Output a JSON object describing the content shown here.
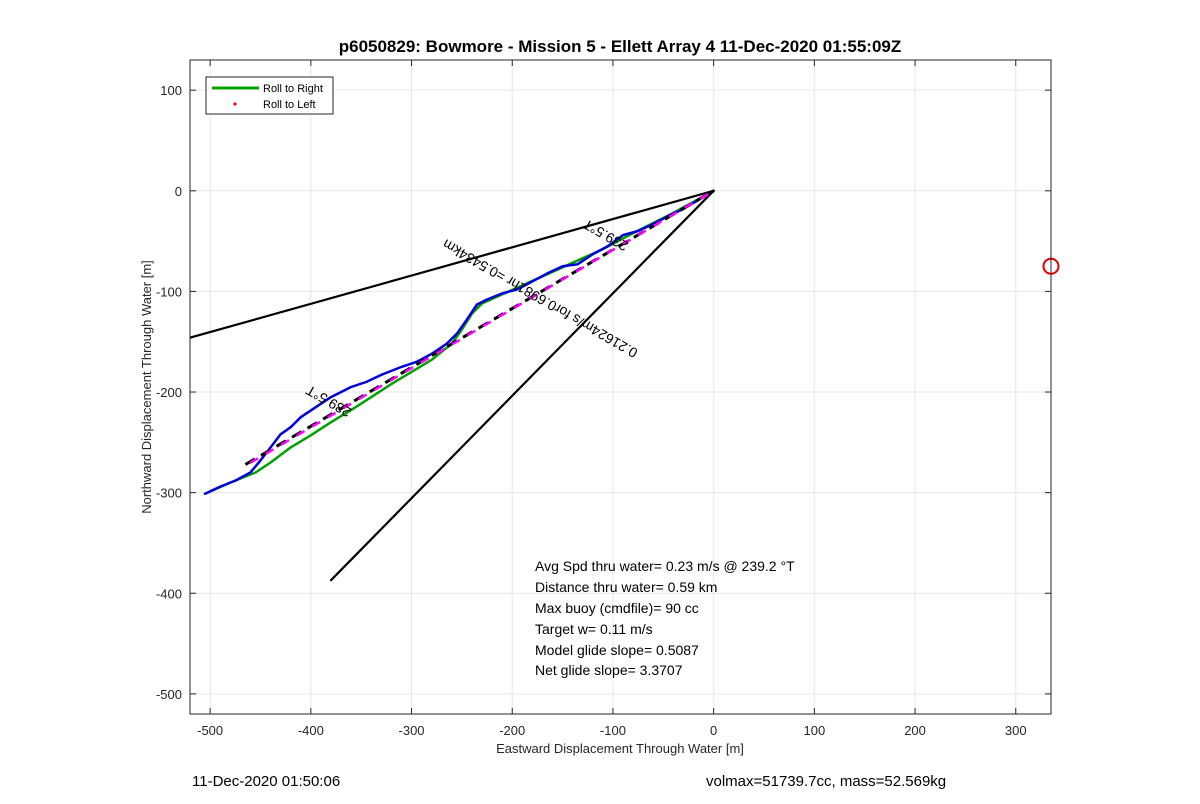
{
  "chart_data": {
    "type": "line",
    "title": "p6050829: Bowmore - Mission 5 - Ellett Array 4 11-Dec-2020 01:55:09Z",
    "xlabel": "Eastward Displacement Through Water [m]",
    "ylabel": "Northward Displacement Through Water [m]",
    "xlim": [
      -520,
      335
    ],
    "ylim": [
      -520,
      130
    ],
    "xticks": [
      -500,
      -400,
      -300,
      -200,
      -100,
      0,
      100,
      200,
      300
    ],
    "xtick_labels": [
      "-500",
      "-400",
      "-300",
      "-200",
      "-100",
      "0",
      "100",
      "200",
      "300"
    ],
    "yticks": [
      -500,
      -400,
      -300,
      -200,
      -100,
      0,
      100
    ],
    "ytick_labels": [
      "-500",
      "-400",
      "-300",
      "-200",
      "-100",
      "0",
      "100"
    ],
    "grid": true,
    "legend": {
      "placement": "top-left",
      "entries": [
        {
          "label": "Roll to Right",
          "color": "#00a000",
          "style": "line"
        },
        {
          "label": "Roll to Left",
          "color": "#ff0000",
          "style": "dot"
        }
      ]
    },
    "series": [
      {
        "name": "Roll to Right",
        "color": "#00a000",
        "width": 2.5,
        "x": [
          -505,
          -480,
          -455,
          -440,
          -420,
          -400,
          -380,
          -360,
          -340,
          -320,
          -300,
          -280,
          -260,
          -250,
          -240,
          -230,
          -210,
          -190,
          -170,
          -150,
          -130,
          -110,
          -95,
          -80,
          -60,
          -40,
          -20,
          0
        ],
        "y": [
          -301,
          -290,
          -280,
          -270,
          -255,
          -243,
          -230,
          -218,
          -205,
          -192,
          -180,
          -168,
          -152,
          -138,
          -122,
          -112,
          -103,
          -94,
          -85,
          -76,
          -67,
          -58,
          -50,
          -42,
          -32,
          -22,
          -11,
          0
        ]
      },
      {
        "name": "",
        "color": "#0000dd",
        "width": 2.5,
        "x": [
          -505,
          -490,
          -475,
          -460,
          -450,
          -440,
          -430,
          -420,
          -410,
          -395,
          -380,
          -360,
          -345,
          -330,
          -310,
          -295,
          -280,
          -265,
          -255,
          -245,
          -235,
          -225,
          -210,
          -195,
          -180,
          -165,
          -150,
          -135,
          -120,
          -105,
          -90,
          -75,
          -60,
          -45,
          -30,
          -15,
          0
        ],
        "y": [
          -301,
          -294,
          -288,
          -280,
          -268,
          -255,
          -242,
          -235,
          -225,
          -215,
          -205,
          -195,
          -190,
          -183,
          -175,
          -170,
          -162,
          -152,
          -142,
          -128,
          -113,
          -108,
          -102,
          -98,
          -90,
          -82,
          -75,
          -73,
          -63,
          -55,
          -44,
          -40,
          -33,
          -25,
          -18,
          -9,
          0
        ]
      },
      {
        "name": "",
        "color": "#000000",
        "width": 2.2,
        "x": [
          -520,
          0
        ],
        "y": [
          -146,
          0
        ]
      },
      {
        "name": "",
        "color": "#000000",
        "width": 2.2,
        "x": [
          -380,
          0
        ],
        "y": [
          -387,
          0
        ]
      },
      {
        "name": "",
        "color": "#000000",
        "width": 3,
        "dash": "11,7",
        "x": [
          -465,
          0
        ],
        "y": [
          -272,
          0
        ]
      },
      {
        "name": "",
        "color": "#ff00ff",
        "width": 2.5,
        "dash": "9,9",
        "dashoffset": 9,
        "x": [
          -468,
          0
        ],
        "y": [
          -275,
          0
        ]
      }
    ],
    "markers": [
      {
        "name": "",
        "x": 335,
        "y": -75,
        "color": "#dd0000",
        "shape": "circle"
      }
    ],
    "annotations": [
      {
        "text": "239.5°T",
        "x": -380,
        "y": -205,
        "rotation": 210
      },
      {
        "text": "239.5°T",
        "x": -105,
        "y": -40,
        "rotation": 210
      },
      {
        "text": "0.21624m/s for0.6981hr =0.5434km",
        "x": -170,
        "y": -103,
        "rotation": 210
      }
    ],
    "stats": [
      "Avg Spd thru water=  0.23 m/s @ 239.2 °T",
      "Distance thru water=  0.59 km",
      "Max buoy (cmdfile)= 90 cc",
      "Target w= 0.11 m/s",
      "Model glide slope= 0.5087",
      "Net glide slope= 3.3707"
    ]
  },
  "footer": {
    "left": "11-Dec-2020 01:50:06",
    "right": "volmax=51739.7cc, mass=52.569kg"
  }
}
